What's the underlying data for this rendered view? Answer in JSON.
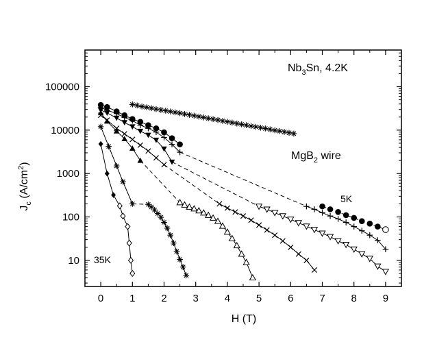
{
  "chart_data": {
    "type": "scatter",
    "xlabel": "H (T)",
    "ylabel_main": "J",
    "ylabel_sub": "c",
    "ylabel_unit": " (A/cm",
    "ylabel_sup": "2",
    "ylabel_close": ")",
    "yscale": "log",
    "xlim": [
      -0.5,
      9.5
    ],
    "ylim": [
      2.5,
      700000
    ],
    "x_ticks": [
      0,
      1,
      2,
      3,
      4,
      5,
      6,
      7,
      8,
      9
    ],
    "x_tick_labels": [
      "0",
      "1",
      "2",
      "3",
      "4",
      "5",
      "6",
      "7",
      "8",
      "9"
    ],
    "y_ticks": [
      10,
      100,
      1000,
      10000,
      100000
    ],
    "y_tick_labels": [
      "10",
      "100",
      "1000",
      "10000",
      "100000"
    ],
    "annotations": {
      "nb3sn_main": "Nb",
      "nb3sn_sub": "3",
      "nb3sn_rest": "Sn, 4.2K",
      "mgb2_main": "MgB",
      "mgb2_sub": "2",
      "mgb2_rest": " wire",
      "label_5k": "5K",
      "label_35k": "35K"
    },
    "series": [
      {
        "marker": "star",
        "points": [
          [
            1.0,
            39000
          ],
          [
            1.15,
            37000
          ],
          [
            1.3,
            35000
          ],
          [
            1.45,
            33500
          ],
          [
            1.6,
            32000
          ],
          [
            1.75,
            30500
          ],
          [
            1.9,
            29200
          ],
          [
            2.05,
            28000
          ],
          [
            2.2,
            26800
          ],
          [
            2.35,
            25700
          ],
          [
            2.5,
            24600
          ],
          [
            2.65,
            23500
          ],
          [
            2.8,
            22500
          ],
          [
            2.95,
            21500
          ],
          [
            3.1,
            20500
          ],
          [
            3.25,
            19600
          ],
          [
            3.4,
            18700
          ],
          [
            3.55,
            17900
          ],
          [
            3.7,
            17100
          ],
          [
            3.85,
            16300
          ],
          [
            4.0,
            15600
          ],
          [
            4.15,
            14900
          ],
          [
            4.3,
            14200
          ],
          [
            4.45,
            13600
          ],
          [
            4.6,
            13000
          ],
          [
            4.75,
            12400
          ],
          [
            4.9,
            11900
          ],
          [
            5.05,
            11400
          ],
          [
            5.2,
            10900
          ],
          [
            5.35,
            10400
          ],
          [
            5.5,
            9900
          ],
          [
            5.65,
            9500
          ],
          [
            5.8,
            9100
          ],
          [
            5.95,
            8700
          ],
          [
            6.1,
            8300
          ]
        ],
        "solid": [],
        "dashed": []
      },
      {
        "marker": "circle",
        "points": [
          [
            0,
            38000
          ],
          [
            0.2,
            34000
          ],
          [
            0.5,
            27000
          ],
          [
            0.75,
            22000
          ],
          [
            1.0,
            18000
          ],
          [
            1.25,
            15500
          ],
          [
            1.5,
            13000
          ],
          [
            1.75,
            11000
          ],
          [
            2.0,
            8900
          ],
          [
            2.25,
            6500
          ],
          [
            2.5,
            4700
          ],
          [
            7.0,
            175
          ],
          [
            7.25,
            150
          ],
          [
            7.5,
            130
          ],
          [
            7.75,
            110
          ],
          [
            8.0,
            95
          ],
          [
            8.25,
            80
          ],
          [
            8.5,
            70
          ],
          [
            8.75,
            60
          ],
          [
            9.0,
            51
          ]
        ],
        "solid": [
          [
            0,
            10
          ]
        ],
        "dashed": [
          [
            11,
            19
          ]
        ]
      },
      {
        "marker": "plus",
        "points": [
          [
            0,
            33000
          ],
          [
            0.2,
            29000
          ],
          [
            0.5,
            24000
          ],
          [
            0.75,
            19500
          ],
          [
            1.0,
            16500
          ],
          [
            1.25,
            13000
          ],
          [
            1.5,
            11000
          ],
          [
            1.75,
            9000
          ],
          [
            2.0,
            6800
          ],
          [
            2.25,
            4700
          ],
          [
            2.5,
            3100
          ],
          [
            6.5,
            175
          ],
          [
            6.75,
            150
          ],
          [
            7.0,
            125
          ],
          [
            7.25,
            105
          ],
          [
            7.5,
            90
          ],
          [
            7.75,
            75
          ],
          [
            8.0,
            60
          ],
          [
            8.25,
            48
          ],
          [
            8.5,
            38
          ],
          [
            8.75,
            29
          ],
          [
            9.0,
            18
          ]
        ],
        "solid": [
          [
            0,
            10
          ],
          [
            11,
            21
          ]
        ],
        "dashed": [
          [
            10,
            11
          ]
        ]
      },
      {
        "marker": "triangle-down",
        "points": [
          [
            0,
            29000
          ],
          [
            0.2,
            25000
          ],
          [
            0.5,
            19000
          ],
          [
            0.75,
            15000
          ],
          [
            1.0,
            12000
          ],
          [
            1.25,
            9500
          ],
          [
            1.5,
            7700
          ],
          [
            1.75,
            5900
          ],
          [
            2.0,
            3700
          ],
          [
            2.25,
            1850
          ],
          [
            5.0,
            175
          ],
          [
            5.25,
            150
          ],
          [
            5.5,
            125
          ],
          [
            5.75,
            105
          ],
          [
            6.0,
            88
          ],
          [
            6.25,
            73
          ],
          [
            6.5,
            61
          ],
          [
            6.75,
            51
          ],
          [
            7.0,
            42
          ],
          [
            7.25,
            35
          ],
          [
            7.5,
            28
          ],
          [
            7.75,
            23
          ],
          [
            8.0,
            18
          ],
          [
            8.25,
            14
          ],
          [
            8.5,
            11
          ],
          [
            8.75,
            7.3
          ],
          [
            9.0,
            5.5
          ]
        ],
        "solid": [
          [
            0,
            9
          ],
          [
            10,
            26
          ]
        ],
        "dashed": [
          [
            9,
            10
          ]
        ]
      },
      {
        "marker": "x",
        "points": [
          [
            0,
            22000
          ],
          [
            0.2,
            17000
          ],
          [
            0.5,
            11000
          ],
          [
            0.75,
            8200
          ],
          [
            1.0,
            6100
          ],
          [
            1.25,
            4500
          ],
          [
            1.5,
            3300
          ],
          [
            1.75,
            2300
          ],
          [
            2.0,
            1600
          ],
          [
            3.75,
            200
          ],
          [
            4.0,
            160
          ],
          [
            4.25,
            130
          ],
          [
            4.5,
            105
          ],
          [
            4.75,
            84
          ],
          [
            5.0,
            65
          ],
          [
            5.25,
            50
          ],
          [
            5.5,
            38
          ],
          [
            5.75,
            28
          ],
          [
            6.0,
            20
          ],
          [
            6.25,
            14
          ],
          [
            6.5,
            10
          ],
          [
            6.75,
            6
          ]
        ],
        "solid": [
          [
            0,
            8
          ],
          [
            9,
            21
          ]
        ],
        "dashed": [
          [
            8,
            9
          ]
        ]
      },
      {
        "marker": "triangle-up",
        "points": [
          [
            0,
            25000
          ],
          [
            0.2,
            16000
          ],
          [
            0.5,
            9500
          ],
          [
            0.75,
            6300
          ],
          [
            1.0,
            3800
          ],
          [
            1.25,
            2000
          ],
          [
            2.5,
            215
          ],
          [
            2.65,
            190
          ],
          [
            2.8,
            170
          ],
          [
            2.95,
            155
          ],
          [
            3.1,
            140
          ],
          [
            3.25,
            125
          ],
          [
            3.4,
            110
          ],
          [
            3.55,
            95
          ],
          [
            3.7,
            80
          ],
          [
            3.85,
            62
          ],
          [
            4.0,
            45
          ],
          [
            4.15,
            32
          ],
          [
            4.3,
            22
          ],
          [
            4.45,
            14
          ],
          [
            4.6,
            9
          ],
          [
            4.8,
            4
          ]
        ],
        "solid": [
          [
            0,
            5
          ],
          [
            6,
            21
          ]
        ],
        "dashed": [
          [
            5,
            6
          ]
        ]
      },
      {
        "marker": "asterisk",
        "points": [
          [
            0,
            12000
          ],
          [
            0.25,
            4200
          ],
          [
            0.5,
            1500
          ],
          [
            0.7,
            650
          ],
          [
            1.0,
            200
          ],
          [
            1.5,
            195
          ],
          [
            1.6,
            170
          ],
          [
            1.7,
            145
          ],
          [
            1.8,
            120
          ],
          [
            1.9,
            98
          ],
          [
            2.0,
            75
          ],
          [
            2.1,
            55
          ],
          [
            2.2,
            38
          ],
          [
            2.3,
            25
          ],
          [
            2.4,
            16
          ],
          [
            2.5,
            10.5
          ],
          [
            2.6,
            7
          ],
          [
            2.7,
            4.5
          ]
        ],
        "solid": [
          [
            0,
            4
          ],
          [
            5,
            17
          ]
        ],
        "dashed": [
          [
            4,
            5
          ]
        ]
      },
      {
        "marker": "diamond",
        "points": [
          [
            0,
            4800
          ],
          [
            0.2,
            1000
          ],
          [
            0.4,
            320
          ],
          [
            0.6,
            180
          ],
          [
            0.7,
            105
          ],
          [
            0.85,
            60
          ],
          [
            0.9,
            25
          ],
          [
            0.95,
            10
          ],
          [
            1.0,
            5
          ]
        ],
        "solid": [
          [
            0,
            8
          ]
        ],
        "dashed": []
      }
    ]
  }
}
